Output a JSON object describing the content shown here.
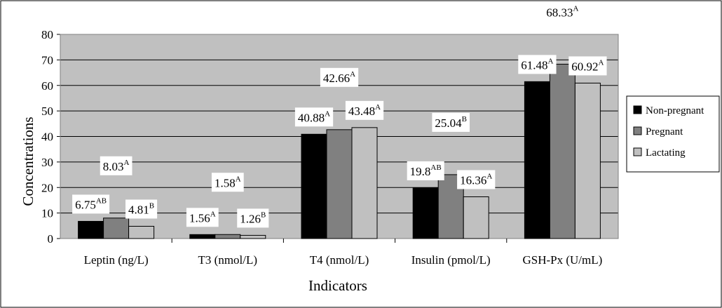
{
  "chart_data": {
    "type": "bar",
    "title": "",
    "xlabel": "Indicators",
    "ylabel": "Concentrations",
    "ylim": [
      0,
      80
    ],
    "yticks": [
      0,
      10,
      20,
      30,
      40,
      50,
      60,
      70,
      80
    ],
    "grid": true,
    "legend_position": "right",
    "categories": [
      "Leptin (ng/L)",
      "T3 (nmol/L)",
      "T4 (nmol/L)",
      "Insulin (pmol/L)",
      "GSH-Px (U/mL)"
    ],
    "series": [
      {
        "name": "Non-pregnant",
        "color": "#000000",
        "values": [
          6.75,
          1.56,
          40.88,
          19.8,
          61.48
        ],
        "labels": [
          {
            "value": "6.75",
            "sup": "AB"
          },
          {
            "value": "1.56",
            "sup": "A"
          },
          {
            "value": "40.88",
            "sup": "A"
          },
          {
            "value": "19.8",
            "sup": "AB"
          },
          {
            "value": "61.48",
            "sup": "A"
          }
        ]
      },
      {
        "name": "Pregnant",
        "color": "#808080",
        "values": [
          8.03,
          1.58,
          42.66,
          25.04,
          68.33
        ],
        "labels": [
          {
            "value": "8.03",
            "sup": "A"
          },
          {
            "value": "1.58",
            "sup": "A"
          },
          {
            "value": "42.66",
            "sup": "A"
          },
          {
            "value": "25.04",
            "sup": "B"
          },
          {
            "value": "68.33",
            "sup": "A"
          }
        ]
      },
      {
        "name": "Lactating",
        "color": "#c0c0c0",
        "values": [
          4.81,
          1.26,
          43.48,
          16.36,
          60.92
        ],
        "labels": [
          {
            "value": "4.81",
            "sup": "B"
          },
          {
            "value": "1.26",
            "sup": "B"
          },
          {
            "value": "43.48",
            "sup": "A"
          },
          {
            "value": "16.36",
            "sup": "A"
          },
          {
            "value": "60.92",
            "sup": "A"
          }
        ]
      }
    ],
    "colors": {
      "plot_background": "#c0c0c0",
      "gridline": "#000000",
      "border": "#000000"
    }
  }
}
